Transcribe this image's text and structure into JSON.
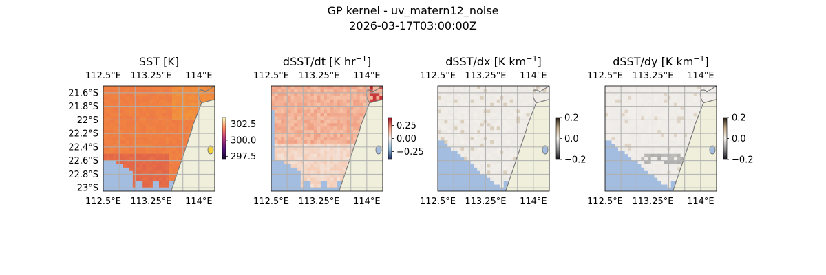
{
  "figure": {
    "title": "GP kernel - uv_matern12_noise",
    "subtitle": "2026-03-17T03:00:00Z"
  },
  "axes": {
    "lon_ticks": [
      "112.5°E",
      "113.25°E",
      "114°E"
    ],
    "lat_ticks": [
      "21.6°S",
      "21.8°S",
      "22°S",
      "22.2°S",
      "22.4°S",
      "22.6°S",
      "22.8°S",
      "23°S"
    ]
  },
  "chart_data": [
    {
      "type": "heatmap",
      "title": "SST [K]",
      "title_base": "SST [K]",
      "title_sup": "",
      "title_tail": "",
      "xlabel": "",
      "ylabel": "",
      "xlim": [
        112.5,
        114.25
      ],
      "ylim": [
        -23.05,
        -21.5
      ],
      "x_ticks": [
        "112.5°E",
        "113.25°E",
        "114°E"
      ],
      "y_ticks": [
        "21.6°S",
        "21.8°S",
        "22°S",
        "22.2°S",
        "22.4°S",
        "22.6°S",
        "22.8°S",
        "23°S"
      ],
      "colormap": "inferno-like",
      "typical_value": 301.5,
      "clim": [
        297.0,
        303.5
      ],
      "colorbar_ticks": [
        302.5,
        300.0,
        297.5
      ],
      "colorbar_labels": [
        "302.5",
        "300.0",
        "297.5"
      ],
      "grid": true
    },
    {
      "type": "heatmap",
      "title": "dSST/dt [K hr−1]",
      "title_base": "dSST/dt [K hr",
      "title_sup": "−1",
      "title_tail": "]",
      "xlabel": "",
      "ylabel": "",
      "xlim": [
        112.5,
        114.25
      ],
      "ylim": [
        -23.05,
        -21.5
      ],
      "x_ticks": [
        "112.5°E",
        "113.25°E",
        "114°E"
      ],
      "y_ticks": [],
      "colormap": "RdBu_r",
      "typical_value": 0.1,
      "clim": [
        -0.4,
        0.4
      ],
      "colorbar_ticks": [
        0.25,
        0.0,
        -0.25
      ],
      "colorbar_labels": [
        "0.25",
        "0.00",
        "−0.25"
      ],
      "grid": true
    },
    {
      "type": "heatmap",
      "title": "dSST/dx [K km−1]",
      "title_base": "dSST/dx [K km",
      "title_sup": "−1",
      "title_tail": "]",
      "xlabel": "",
      "ylabel": "",
      "xlim": [
        112.5,
        114.25
      ],
      "ylim": [
        -23.05,
        -21.5
      ],
      "x_ticks": [
        "112.5°E",
        "113.25°E",
        "114°E"
      ],
      "y_ticks": [],
      "colormap": "diverging dark-white-dark",
      "typical_value": 0.0,
      "clim": [
        -0.2,
        0.2
      ],
      "colorbar_ticks": [
        0.2,
        0.0,
        -0.2
      ],
      "colorbar_labels": [
        "0.2",
        "0.0",
        "−0.2"
      ],
      "grid": true
    },
    {
      "type": "heatmap",
      "title": "dSST/dy [K km−1]",
      "title_base": "dSST/dy [K km",
      "title_sup": "−1",
      "title_tail": "]",
      "xlabel": "",
      "ylabel": "",
      "xlim": [
        112.5,
        114.25
      ],
      "ylim": [
        -23.05,
        -21.5
      ],
      "x_ticks": [
        "112.5°E",
        "113.25°E",
        "114°E"
      ],
      "y_ticks": [],
      "colormap": "diverging dark-white-dark",
      "typical_value": 0.0,
      "clim": [
        -0.2,
        0.2
      ],
      "colorbar_ticks": [
        0.2,
        0.0,
        -0.2
      ],
      "colorbar_labels": [
        "0.2",
        "0.0",
        "−0.2"
      ],
      "grid": true
    }
  ],
  "colors": {
    "ocean_mask": "#a3bde0",
    "land": "#efefdb",
    "coastline": "#7a7a7a",
    "grid": "#b0b0b0",
    "sst_main": "#ef7a45",
    "sst_warm": "#f29a3a",
    "sst_cool": "#d9574a",
    "dt_light": "#f6c3a8",
    "dt_mid": "#f0a084",
    "dt_hot": "#c0262c",
    "grad_paper": "#f2efeb",
    "grad_tan": "#c2ac8c",
    "grad_gray": "#8f8f8f"
  }
}
